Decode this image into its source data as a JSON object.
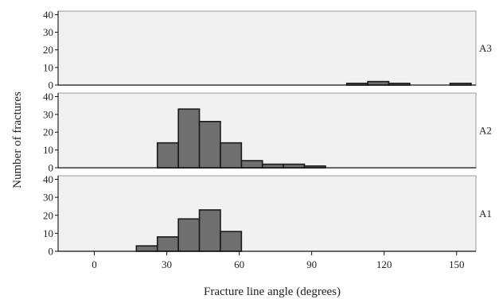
{
  "chart_data": {
    "type": "bar",
    "xlabel": "Fracture line angle (degrees)",
    "ylabel": "Number of fractures",
    "xlim": [
      -15,
      158
    ],
    "ylim": [
      0,
      42
    ],
    "xticks": [
      0,
      30,
      60,
      90,
      120,
      150
    ],
    "yticks": [
      0,
      10,
      20,
      30,
      40
    ],
    "bin_width": 8.7,
    "grid": false,
    "panels": [
      {
        "label": "A3",
        "bins": [
          {
            "x0": 104.5,
            "count": 1
          },
          {
            "x0": 113.2,
            "count": 2
          },
          {
            "x0": 121.9,
            "count": 1
          },
          {
            "x0": 147.3,
            "count": 1
          }
        ]
      },
      {
        "label": "A2",
        "bins": [
          {
            "x0": 26.1,
            "count": 14
          },
          {
            "x0": 34.8,
            "count": 33
          },
          {
            "x0": 43.5,
            "count": 26
          },
          {
            "x0": 52.2,
            "count": 14
          },
          {
            "x0": 60.9,
            "count": 4
          },
          {
            "x0": 69.6,
            "count": 2
          },
          {
            "x0": 78.3,
            "count": 2
          },
          {
            "x0": 87.0,
            "count": 1
          }
        ]
      },
      {
        "label": "A1",
        "bins": [
          {
            "x0": 17.4,
            "count": 3
          },
          {
            "x0": 26.1,
            "count": 8
          },
          {
            "x0": 34.8,
            "count": 18
          },
          {
            "x0": 43.5,
            "count": 23
          },
          {
            "x0": 52.2,
            "count": 11
          }
        ]
      }
    ],
    "colors": {
      "panel_bg": "#f1f1f1",
      "bar_fill": "#6f6f6f",
      "bar_stroke": "#1a1a1a",
      "frame": "#9a9a9a"
    }
  }
}
